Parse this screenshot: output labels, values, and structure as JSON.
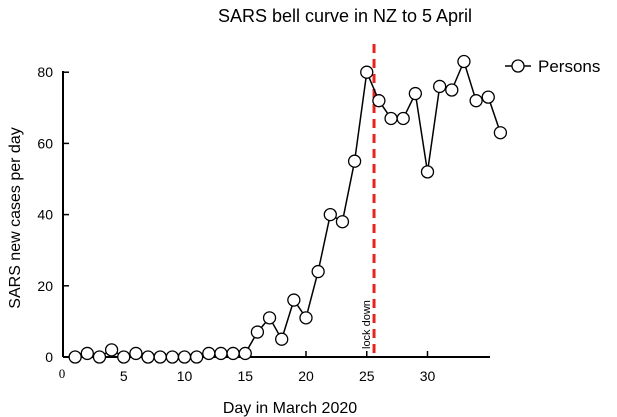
{
  "chart_data": {
    "type": "line",
    "title": "SARS bell curve in NZ to 5 April",
    "xlabel": "Day in March 2020",
    "ylabel": "SARS new cases per day",
    "xlim": [
      0,
      36
    ],
    "ylim": [
      0,
      80
    ],
    "x_ticks": [
      5,
      10,
      15,
      20,
      25,
      30
    ],
    "x_origin_label": "0",
    "y_ticks": [
      0,
      20,
      40,
      60,
      80
    ],
    "grid": false,
    "legend_position": "top-right",
    "marker": "open-circle",
    "series": [
      {
        "name": "Persons",
        "color": "#000000",
        "x": [
          1,
          2,
          3,
          4,
          5,
          6,
          7,
          8,
          9,
          10,
          11,
          12,
          13,
          14,
          15,
          16,
          17,
          18,
          19,
          20,
          21,
          22,
          23,
          24,
          25,
          26,
          27,
          28,
          29,
          30,
          31,
          32,
          33,
          34,
          35,
          36
        ],
        "values": [
          0,
          1,
          0,
          2,
          0,
          1,
          0,
          0,
          0,
          0,
          0,
          1,
          1,
          1,
          1,
          7,
          11,
          5,
          16,
          11,
          24,
          40,
          38,
          55,
          80,
          72,
          67,
          67,
          74,
          52,
          76,
          75,
          83,
          72,
          73,
          63
        ]
      }
    ],
    "annotations": [
      {
        "type": "vertical-line",
        "x": 25.6,
        "style": "dashed",
        "color": "#e8231f",
        "label": "lock down"
      }
    ]
  }
}
